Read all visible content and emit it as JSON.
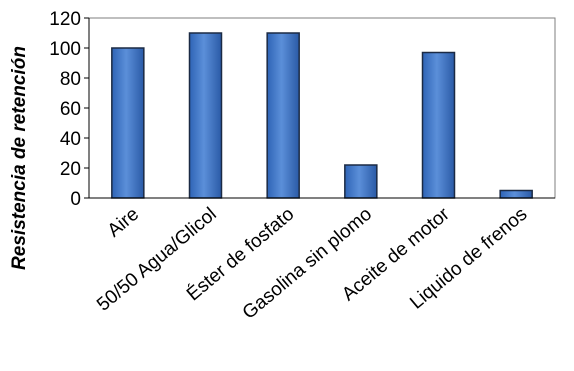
{
  "chart_data": {
    "type": "bar",
    "title": "",
    "xlabel": "",
    "ylabel": "Resistencia de retención",
    "categories": [
      "Aire",
      "50/50 Agua/Glicol",
      "Éster de fosfato",
      "Gasolina sin plomo",
      "Aceite de motor",
      "Liquido de frenos"
    ],
    "values": [
      100,
      110,
      110,
      22,
      97,
      5
    ],
    "ylim": [
      0,
      120
    ],
    "yticks": [
      0,
      20,
      40,
      60,
      80,
      100,
      120
    ],
    "grid": false,
    "legend": "none",
    "colors": {
      "bar_fill_light": "#5b8fd9",
      "bar_fill_dark": "#2a5aa6",
      "bar_edge": "#1b2a44",
      "axis": "#000000",
      "plot_border": "#7f7f7f"
    }
  }
}
